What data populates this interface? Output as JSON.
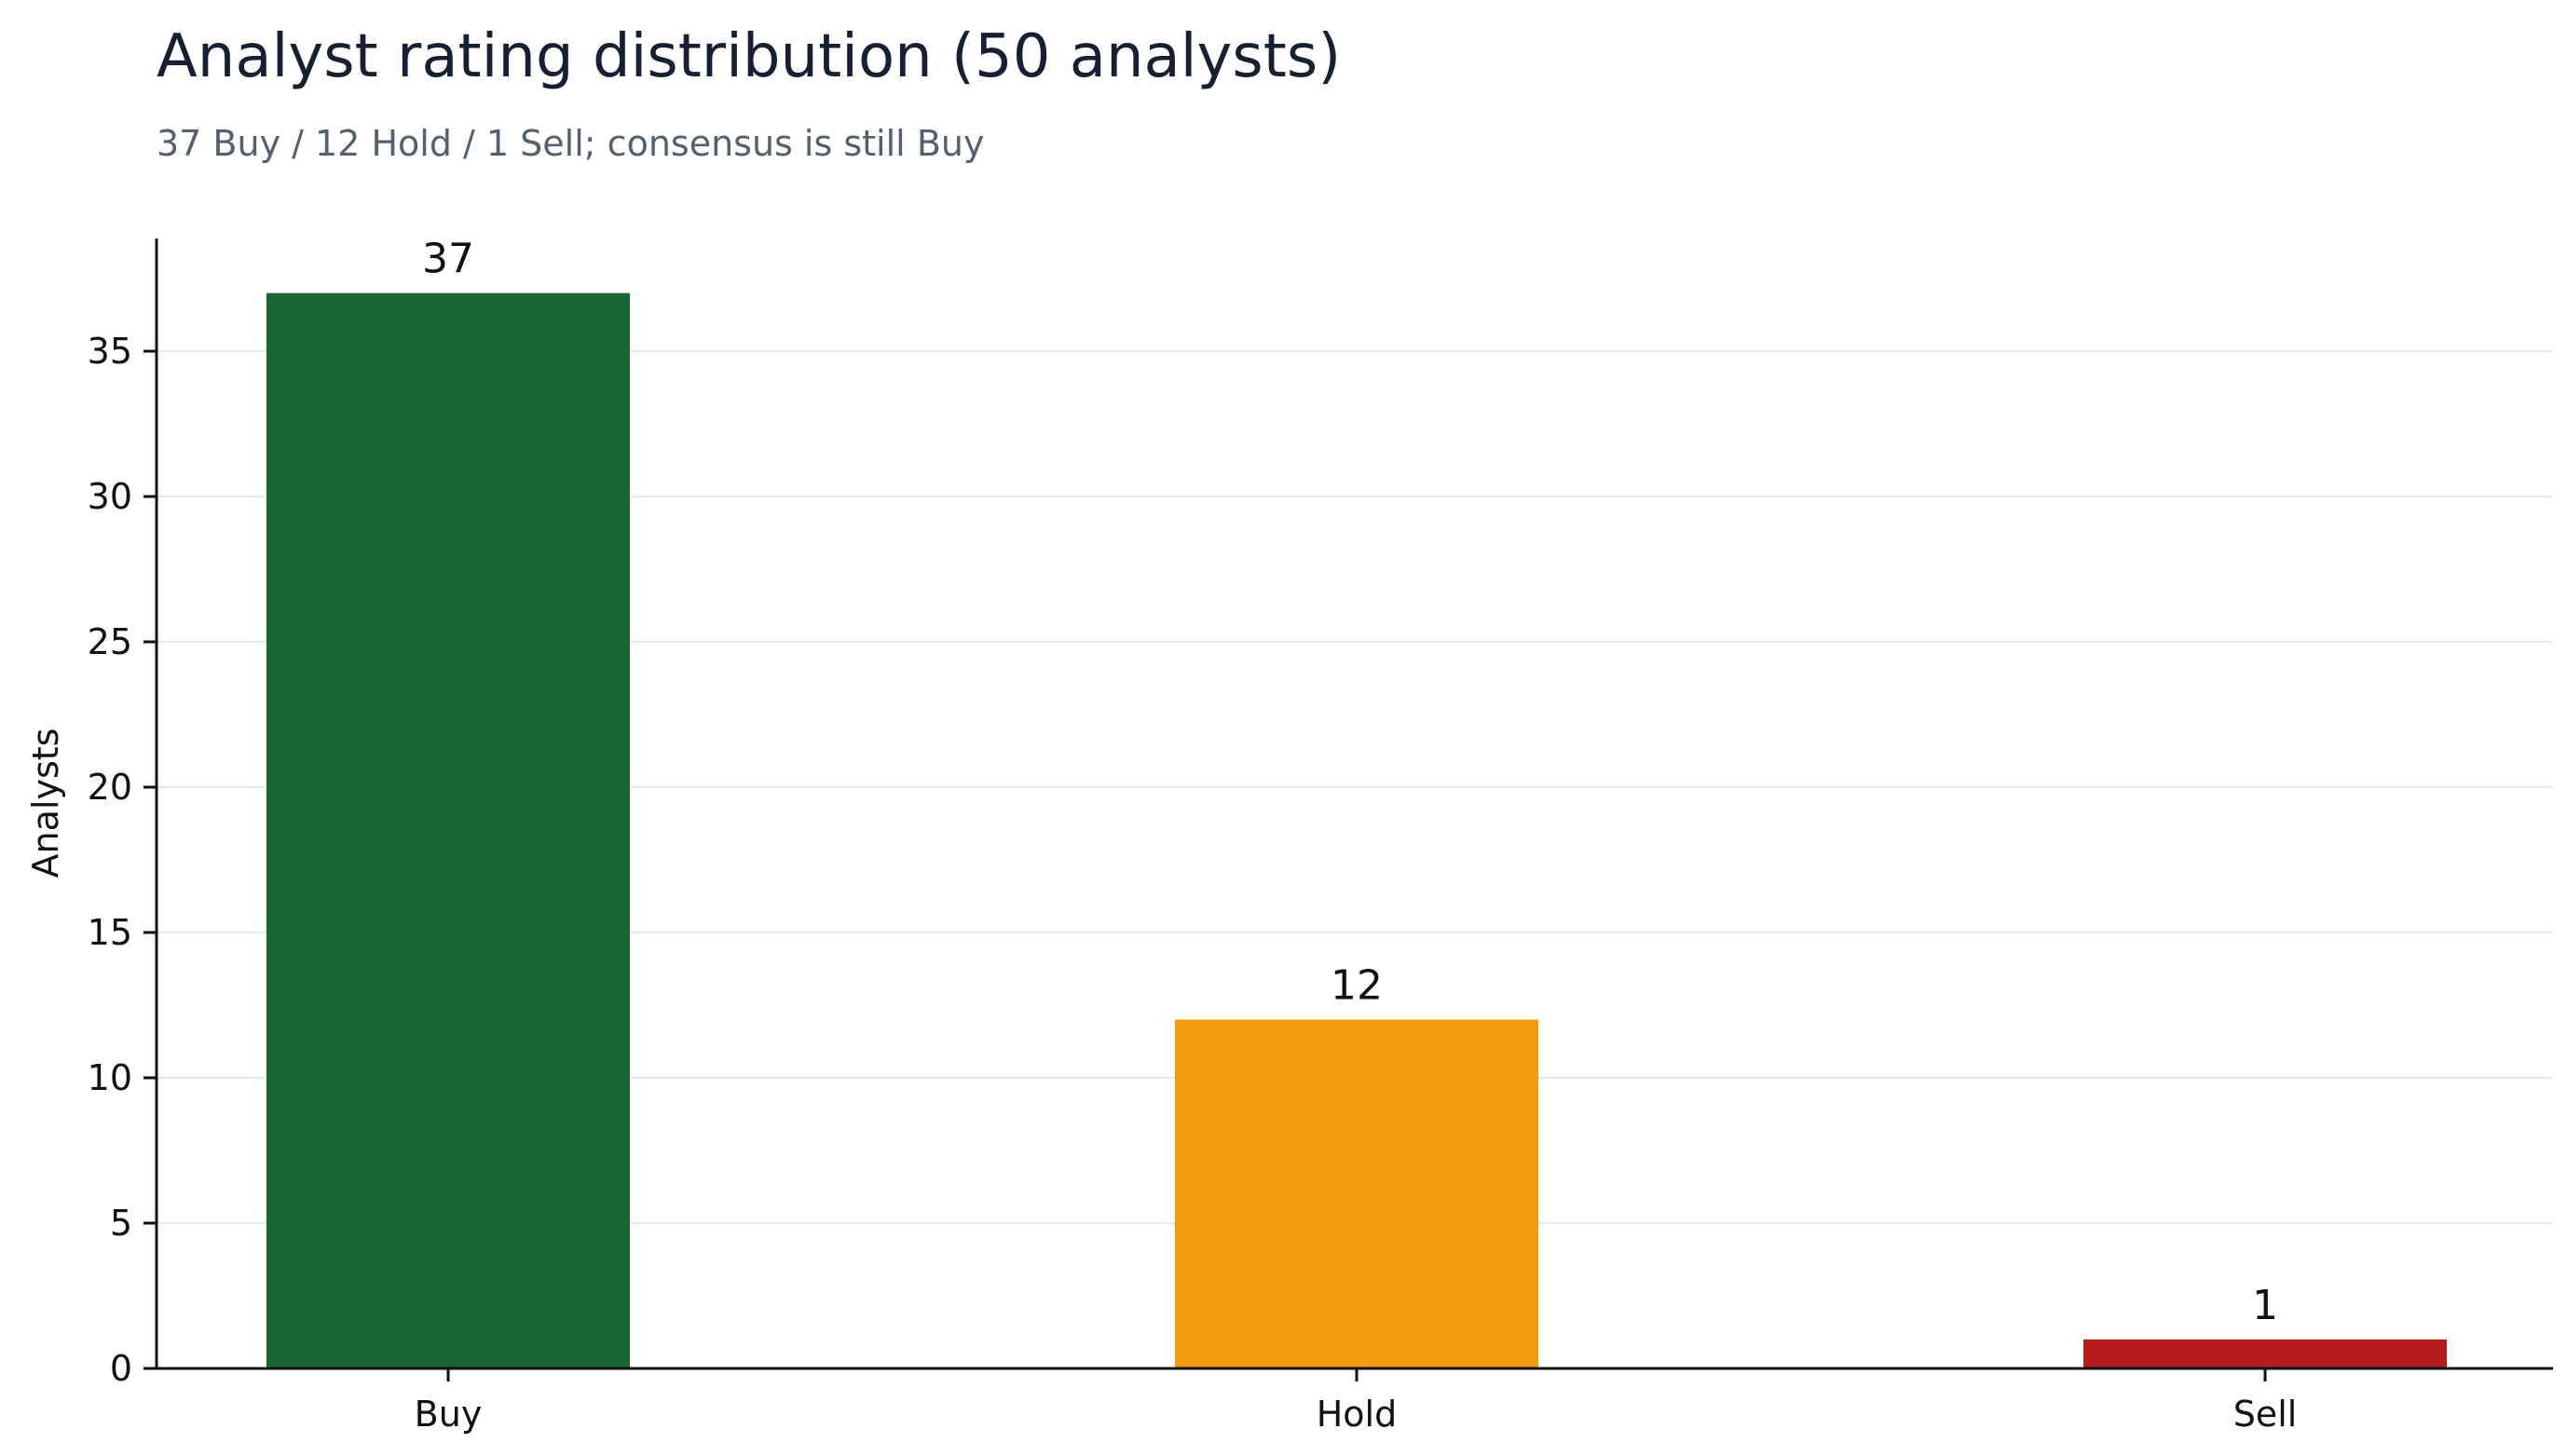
{
  "chart_data": {
    "type": "bar",
    "title": "Analyst rating distribution (50 analysts)",
    "subtitle": "37 Buy / 12 Hold / 1 Sell; consensus is still Buy",
    "xlabel": "",
    "ylabel": "Analysts",
    "categories": [
      "Buy",
      "Hold",
      "Sell"
    ],
    "values": [
      37,
      12,
      1
    ],
    "colors": [
      "#1b6535",
      "#f39c12",
      "#b71c1c"
    ],
    "ylim": [
      0,
      39
    ],
    "yticks": [
      0,
      5,
      10,
      15,
      20,
      25,
      30,
      35
    ],
    "grid": "horizontal",
    "legend": "none",
    "data_labels": true
  }
}
